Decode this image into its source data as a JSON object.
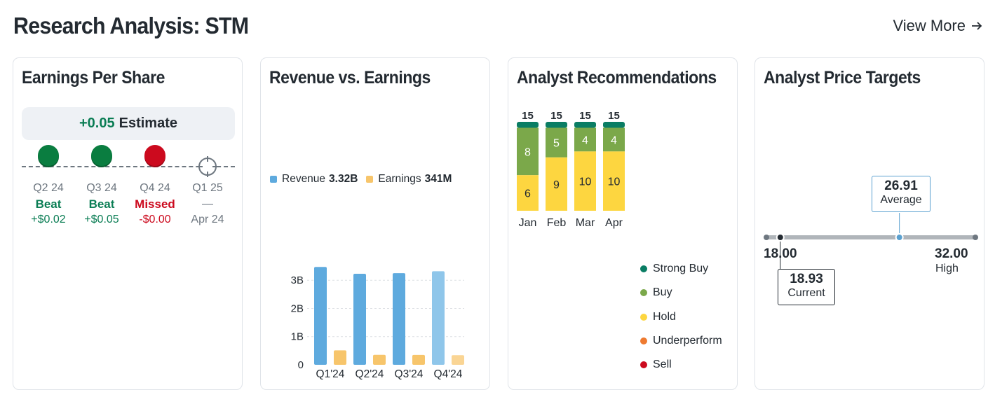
{
  "header": {
    "title": "Research Analysis: STM",
    "view_more": "View More"
  },
  "eps": {
    "title": "Earnings Per Share",
    "estimate_value": "+0.05",
    "estimate_label": "Estimate",
    "quarters": [
      {
        "quarter": "Q2 24",
        "result": "Beat",
        "diff": "+$0.02",
        "status": "beat"
      },
      {
        "quarter": "Q3 24",
        "result": "Beat",
        "diff": "+$0.05",
        "status": "beat"
      },
      {
        "quarter": "Q4 24",
        "result": "Missed",
        "diff": "-$0.00",
        "status": "missed"
      },
      {
        "quarter": "Q1 25",
        "result": "—",
        "diff": "Apr 24",
        "status": "upcoming"
      }
    ]
  },
  "revenue": {
    "title": "Revenue vs. Earnings",
    "legend_revenue_label": "Revenue",
    "legend_revenue_value": "3.32B",
    "legend_earnings_label": "Earnings",
    "legend_earnings_value": "341M",
    "colors": {
      "revenue": "#5eaade",
      "revenue_latest": "#8fc6ea",
      "earnings": "#f7c56b",
      "earnings_latest": "#fad594"
    }
  },
  "recommendations": {
    "title": "Analyst Recommendations",
    "legend": [
      "Strong Buy",
      "Buy",
      "Hold",
      "Underperform",
      "Sell"
    ],
    "colors": {
      "strong_buy": "#0a7d64",
      "buy": "#7ba84a",
      "hold": "#fdd640",
      "underperform": "#ee7a30",
      "sell": "#cc0a1e"
    }
  },
  "price_targets": {
    "title": "Analyst Price Targets",
    "low": "18.00",
    "high": "32.00",
    "high_label": "High",
    "current": "18.93",
    "current_label": "Current",
    "average": "26.91",
    "average_label": "Average"
  },
  "chart_data": [
    {
      "type": "bar",
      "title": "Revenue vs. Earnings",
      "categories": [
        "Q1'24",
        "Q2'24",
        "Q3'24",
        "Q4'24"
      ],
      "series": [
        {
          "name": "Revenue",
          "values": [
            3.47,
            3.23,
            3.25,
            3.32
          ]
        },
        {
          "name": "Earnings",
          "values": [
            0.513,
            0.353,
            0.351,
            0.341
          ]
        }
      ],
      "ylim": [
        0,
        3.8
      ],
      "yticks": [
        0,
        1,
        2,
        3
      ],
      "ytick_labels": [
        "0",
        "1B",
        "2B",
        "3B"
      ],
      "unit": "B"
    },
    {
      "type": "bar",
      "stacked": true,
      "title": "Analyst Recommendations",
      "categories": [
        "Jan",
        "Feb",
        "Mar",
        "Apr"
      ],
      "totals": [
        15,
        15,
        15,
        15
      ],
      "series": [
        {
          "name": "Hold",
          "values": [
            6,
            9,
            10,
            10
          ]
        },
        {
          "name": "Buy",
          "values": [
            8,
            5,
            4,
            4
          ]
        },
        {
          "name": "Strong Buy",
          "values": [
            1,
            1,
            1,
            1
          ]
        },
        {
          "name": "Underperform",
          "values": [
            0,
            0,
            0,
            0
          ]
        },
        {
          "name": "Sell",
          "values": [
            0,
            0,
            0,
            0
          ]
        }
      ]
    },
    {
      "type": "range",
      "title": "Analyst Price Targets",
      "min": 18.0,
      "max": 32.0,
      "current": 18.93,
      "average": 26.91
    }
  ]
}
